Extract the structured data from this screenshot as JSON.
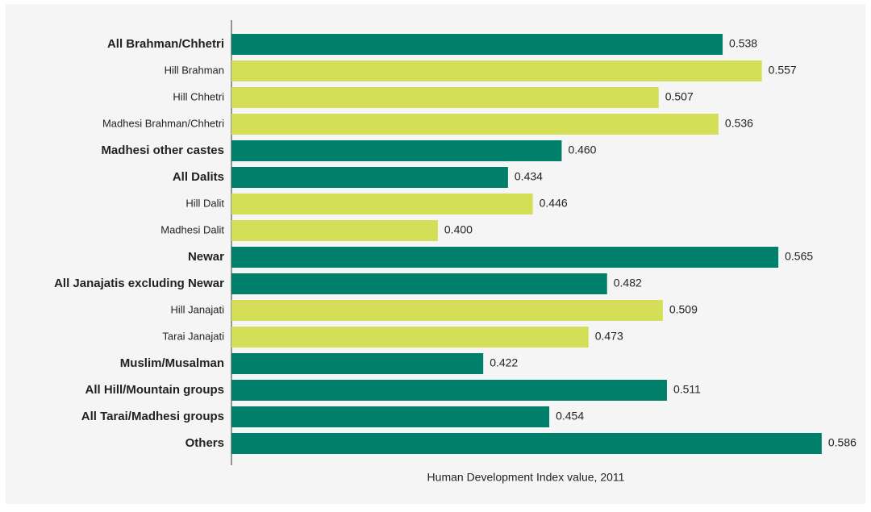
{
  "chart_data": {
    "type": "bar",
    "orientation": "horizontal",
    "xlabel": "Human Development Index value, 2011",
    "categories": [
      "All Brahman/Chhetri",
      "Hill Brahman",
      "Hill Chhetri",
      "Madhesi Brahman/Chhetri",
      "Madhesi other castes",
      "All Dalits",
      "Hill Dalit",
      "Madhesi Dalit",
      "Newar",
      "All Janajatis excluding Newar",
      "Hill Janajati",
      "Tarai Janajati",
      "Muslim/Musalman",
      "All Hill/Mountain groups",
      "All Tarai/Madhesi groups",
      "Others"
    ],
    "values": [
      0.538,
      0.557,
      0.507,
      0.536,
      0.46,
      0.434,
      0.446,
      0.4,
      0.565,
      0.482,
      0.509,
      0.473,
      0.422,
      0.511,
      0.454,
      0.586
    ],
    "value_labels": [
      "0.538",
      "0.557",
      "0.507",
      "0.536",
      "0.460",
      "0.434",
      "0.446",
      "0.400",
      "0.565",
      "0.482",
      "0.509",
      "0.473",
      "0.422",
      "0.511",
      "0.454",
      "0.586"
    ],
    "colors": [
      "#00806a",
      "#d4de56",
      "#d4de56",
      "#d4de56",
      "#00806a",
      "#00806a",
      "#d4de56",
      "#d4de56",
      "#00806a",
      "#00806a",
      "#d4de56",
      "#d4de56",
      "#00806a",
      "#00806a",
      "#00806a",
      "#00806a"
    ],
    "bold": [
      true,
      false,
      false,
      false,
      true,
      true,
      false,
      false,
      true,
      true,
      false,
      false,
      true,
      true,
      true,
      true
    ],
    "xlim": [
      0.3,
      0.6
    ]
  }
}
